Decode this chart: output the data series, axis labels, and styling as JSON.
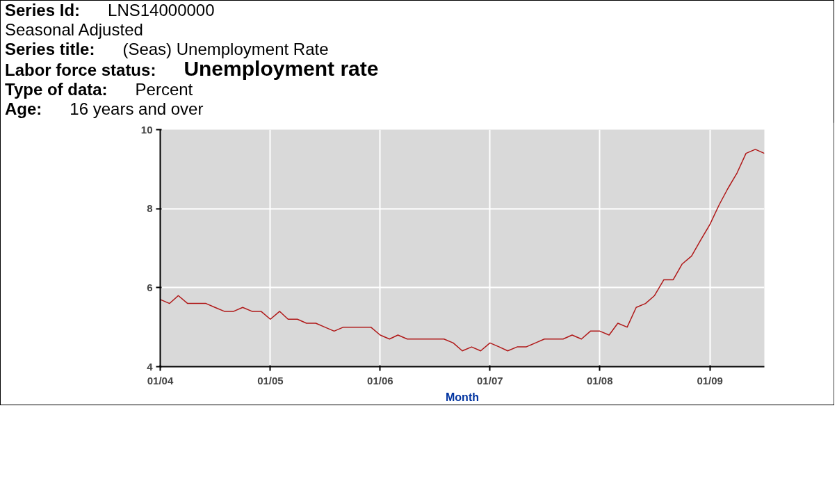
{
  "chart_data": {
    "type": "line",
    "annotations": [
      "Series Id: LNS14000000",
      "Seasonal Adjusted",
      "Series title: (Seas) Unemployment Rate",
      "Labor force status: Unemployment rate",
      "Type of data: Percent",
      "Age: 16 years and over"
    ],
    "xlabel": "Month",
    "x": [
      "2004-01",
      "2004-02",
      "2004-03",
      "2004-04",
      "2004-05",
      "2004-06",
      "2004-07",
      "2004-08",
      "2004-09",
      "2004-10",
      "2004-11",
      "2004-12",
      "2005-01",
      "2005-02",
      "2005-03",
      "2005-04",
      "2005-05",
      "2005-06",
      "2005-07",
      "2005-08",
      "2005-09",
      "2005-10",
      "2005-11",
      "2005-12",
      "2006-01",
      "2006-02",
      "2006-03",
      "2006-04",
      "2006-05",
      "2006-06",
      "2006-07",
      "2006-08",
      "2006-09",
      "2006-10",
      "2006-11",
      "2006-12",
      "2007-01",
      "2007-02",
      "2007-03",
      "2007-04",
      "2007-05",
      "2007-06",
      "2007-07",
      "2007-08",
      "2007-09",
      "2007-10",
      "2007-11",
      "2007-12",
      "2008-01",
      "2008-02",
      "2008-03",
      "2008-04",
      "2008-05",
      "2008-06",
      "2008-07",
      "2008-08",
      "2008-09",
      "2008-10",
      "2008-11",
      "2008-12",
      "2009-01",
      "2009-02",
      "2009-03",
      "2009-04",
      "2009-05",
      "2009-06",
      "2009-07"
    ],
    "series": [
      {
        "color": "#b01818",
        "values": [
          5.7,
          5.6,
          5.8,
          5.6,
          5.6,
          5.6,
          5.5,
          5.4,
          5.4,
          5.5,
          5.4,
          5.4,
          5.2,
          5.4,
          5.2,
          5.2,
          5.1,
          5.1,
          5.0,
          4.9,
          5.0,
          5.0,
          5.0,
          5.0,
          4.8,
          4.7,
          4.8,
          4.7,
          4.7,
          4.7,
          4.7,
          4.7,
          4.6,
          4.4,
          4.5,
          4.4,
          4.6,
          4.5,
          4.4,
          4.5,
          4.5,
          4.6,
          4.7,
          4.7,
          4.7,
          4.8,
          4.7,
          4.9,
          4.9,
          4.8,
          5.1,
          5.0,
          5.5,
          5.6,
          5.8,
          6.2,
          6.2,
          6.6,
          6.8,
          7.2,
          7.6,
          8.1,
          8.5,
          8.9,
          9.4,
          9.5,
          9.4
        ]
      }
    ],
    "xlim": [
      "2004-01",
      "2009-07"
    ],
    "xticks": [
      {
        "value": "2004-01",
        "label": "01/04"
      },
      {
        "value": "2005-01",
        "label": "01/05"
      },
      {
        "value": "2006-01",
        "label": "01/06"
      },
      {
        "value": "2007-01",
        "label": "01/07"
      },
      {
        "value": "2008-01",
        "label": "01/08"
      },
      {
        "value": "2009-01",
        "label": "01/09"
      }
    ],
    "ylim": [
      4,
      10
    ],
    "yticks": [
      4,
      6,
      8,
      10
    ],
    "grid": true,
    "line_style": "solid"
  }
}
